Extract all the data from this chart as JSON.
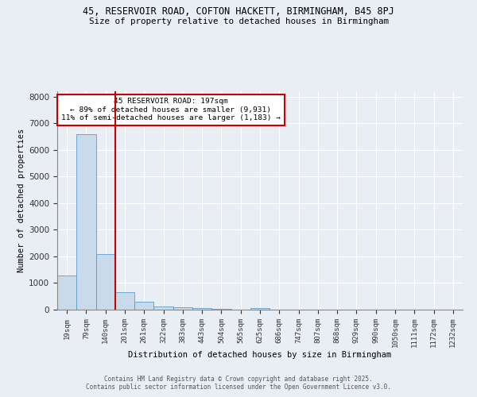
{
  "title": "45, RESERVOIR ROAD, COFTON HACKETT, BIRMINGHAM, B45 8PJ",
  "subtitle": "Size of property relative to detached houses in Birmingham",
  "xlabel": "Distribution of detached houses by size in Birmingham",
  "ylabel": "Number of detached properties",
  "bar_labels": [
    "19sqm",
    "79sqm",
    "140sqm",
    "201sqm",
    "261sqm",
    "322sqm",
    "383sqm",
    "443sqm",
    "504sqm",
    "565sqm",
    "625sqm",
    "686sqm",
    "747sqm",
    "807sqm",
    "868sqm",
    "929sqm",
    "990sqm",
    "1050sqm",
    "1111sqm",
    "1172sqm",
    "1232sqm"
  ],
  "bar_values": [
    1280,
    6600,
    2100,
    660,
    295,
    130,
    85,
    45,
    25,
    8,
    50,
    0,
    0,
    0,
    0,
    0,
    0,
    0,
    0,
    0,
    0
  ],
  "bar_color": "#c9daea",
  "bar_edge_color": "#5b9dc8",
  "red_line_index": 2.5,
  "annotation_title": "45 RESERVOIR ROAD: 197sqm",
  "annotation_line1": "← 89% of detached houses are smaller (9,931)",
  "annotation_line2": "11% of semi-detached houses are larger (1,183) →",
  "annotation_box_facecolor": "#ffffff",
  "annotation_box_edgecolor": "#cc0000",
  "red_line_color": "#cc0000",
  "ylim": [
    0,
    8200
  ],
  "yticks": [
    0,
    1000,
    2000,
    3000,
    4000,
    5000,
    6000,
    7000,
    8000
  ],
  "grid_color": "#ffffff",
  "background_color": "#e8eef4",
  "plot_background": "#e8eef4",
  "footer1": "Contains HM Land Registry data © Crown copyright and database right 2025.",
  "footer2": "Contains public sector information licensed under the Open Government Licence v3.0."
}
